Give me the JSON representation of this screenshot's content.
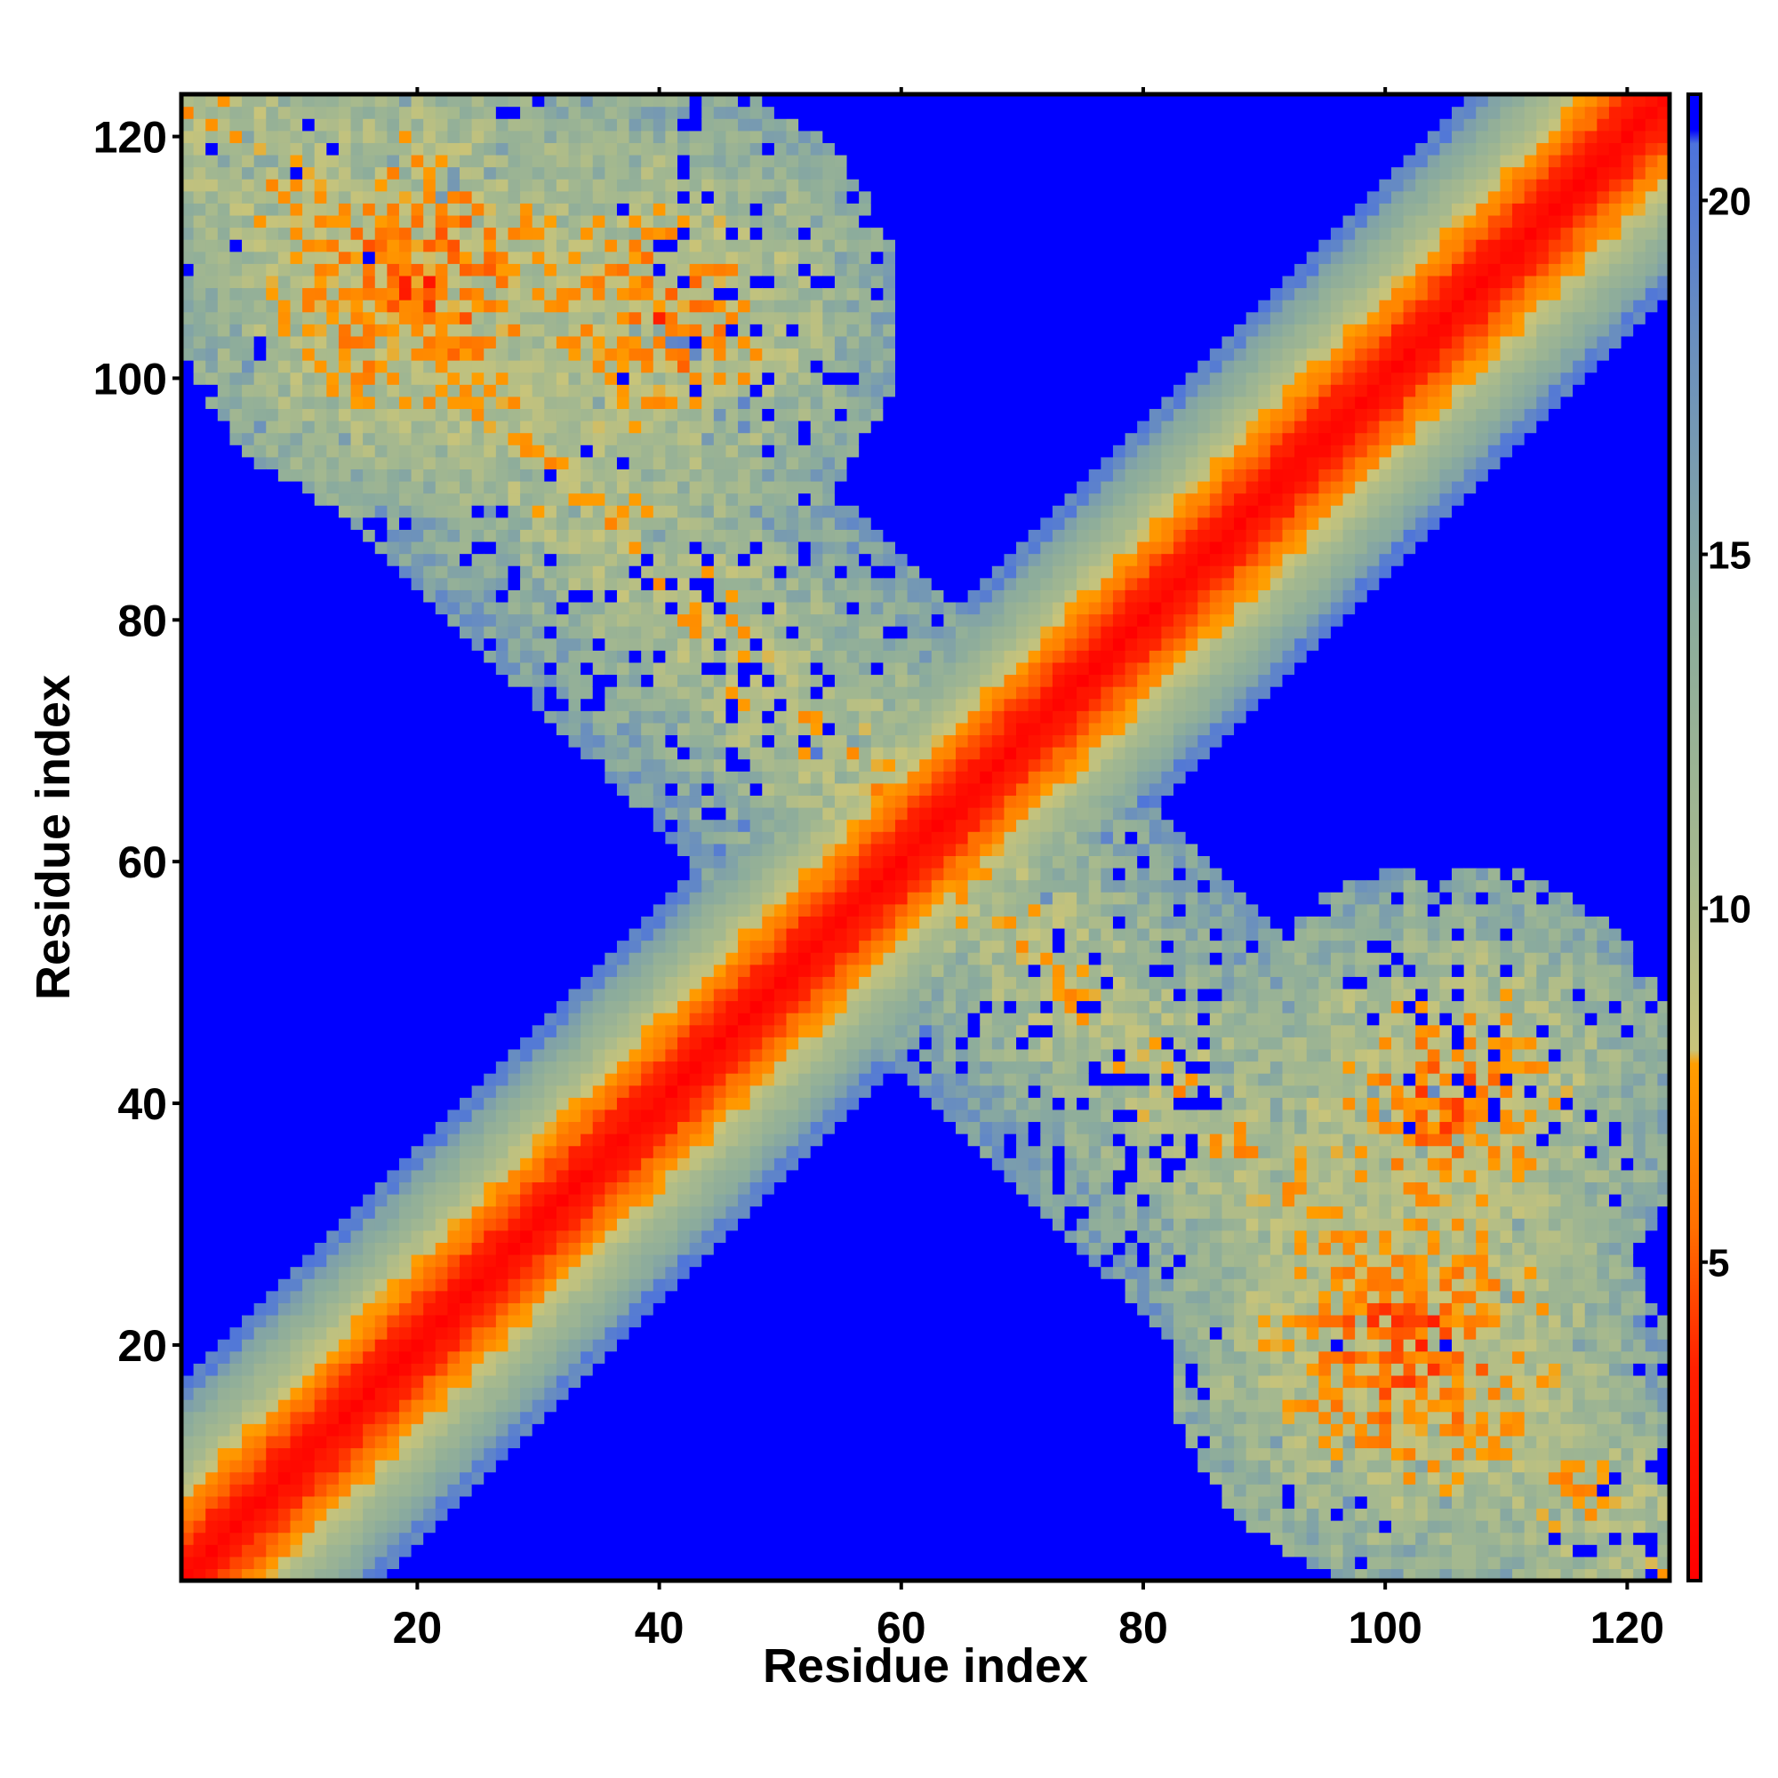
{
  "chart_data": {
    "type": "heatmap",
    "title": "",
    "xlabel": "Residue index",
    "ylabel": "Residue index",
    "n_residues": 123,
    "xlim": [
      0.5,
      123.5
    ],
    "ylim": [
      0.5,
      123.5
    ],
    "x_ticks": [
      20,
      40,
      60,
      80,
      100,
      120
    ],
    "x_tick_labels": [
      "20",
      "40",
      "60",
      "80",
      "100",
      "120"
    ],
    "y_ticks": [
      20,
      40,
      60,
      80,
      100,
      120
    ],
    "y_tick_labels": [
      "20",
      "40",
      "60",
      "80",
      "100",
      "120"
    ],
    "colorbar": {
      "range": [
        0.5,
        21.5
      ],
      "ticks": [
        5,
        10,
        15,
        20
      ],
      "tick_labels": [
        "5",
        "10",
        "15",
        "20"
      ],
      "gradient": [
        {
          "value": 0.5,
          "color": "#ff0000"
        },
        {
          "value": 3.5,
          "color": "#ff2000"
        },
        {
          "value": 5.5,
          "color": "#ff7000"
        },
        {
          "value": 7.8,
          "color": "#ff9e00"
        },
        {
          "value": 8.0,
          "color": "#c8c47a"
        },
        {
          "value": 10.5,
          "color": "#a6b98e"
        },
        {
          "value": 14.0,
          "color": "#8cac9c"
        },
        {
          "value": 18.0,
          "color": "#6a8fbe"
        },
        {
          "value": 20.8,
          "color": "#4d73dc"
        },
        {
          "value": 21.0,
          "color": "#0000ff"
        },
        {
          "value": 21.5,
          "color": "#0000ff"
        }
      ]
    },
    "grid": false,
    "legend": "colorbar-right",
    "structure_description_values": {
      "diagonal_band_halfwidth_residues": 16,
      "antidiagonal_lobes": [
        {
          "x_center": 20,
          "y_center": 108,
          "value_min": 5
        },
        {
          "x_center": 40,
          "y_center": 105,
          "value_min": 6
        },
        {
          "x_center": 102,
          "y_center": 20,
          "value_min": 5
        },
        {
          "x_center": 105,
          "y_center": 40,
          "value_min": 6
        }
      ],
      "off_band_value": 21.5
    }
  }
}
